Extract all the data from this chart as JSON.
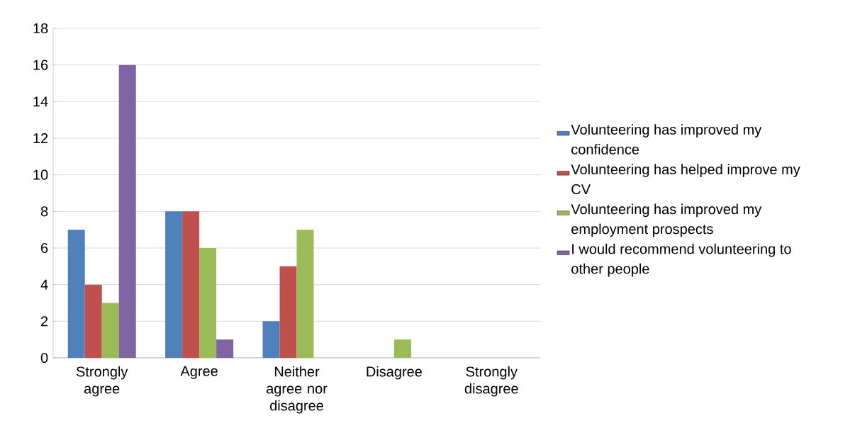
{
  "chart_data": {
    "type": "bar",
    "categories": [
      "Strongly agree",
      "Agree",
      "Neither agree nor disagree",
      "Disagree",
      "Strongly disagree"
    ],
    "series": [
      {
        "name": "Volunteering has improved my confidence",
        "color": "#4f81bd",
        "values": [
          7,
          8,
          2,
          0,
          0
        ]
      },
      {
        "name": "Volunteering has helped improve my CV",
        "color": "#c0504d",
        "values": [
          4,
          8,
          5,
          0,
          0
        ]
      },
      {
        "name": "Volunteering has improved my employment prospects",
        "color": "#9bbb59",
        "values": [
          3,
          6,
          7,
          1,
          0
        ]
      },
      {
        "name": "I would recommend volunteering to other people",
        "color": "#8064a2",
        "values": [
          16,
          1,
          0,
          0,
          0
        ]
      }
    ],
    "ylim": [
      0,
      18
    ],
    "yticks": [
      0,
      2,
      4,
      6,
      8,
      10,
      12,
      14,
      16,
      18
    ],
    "grid": "y",
    "legend": "right"
  }
}
